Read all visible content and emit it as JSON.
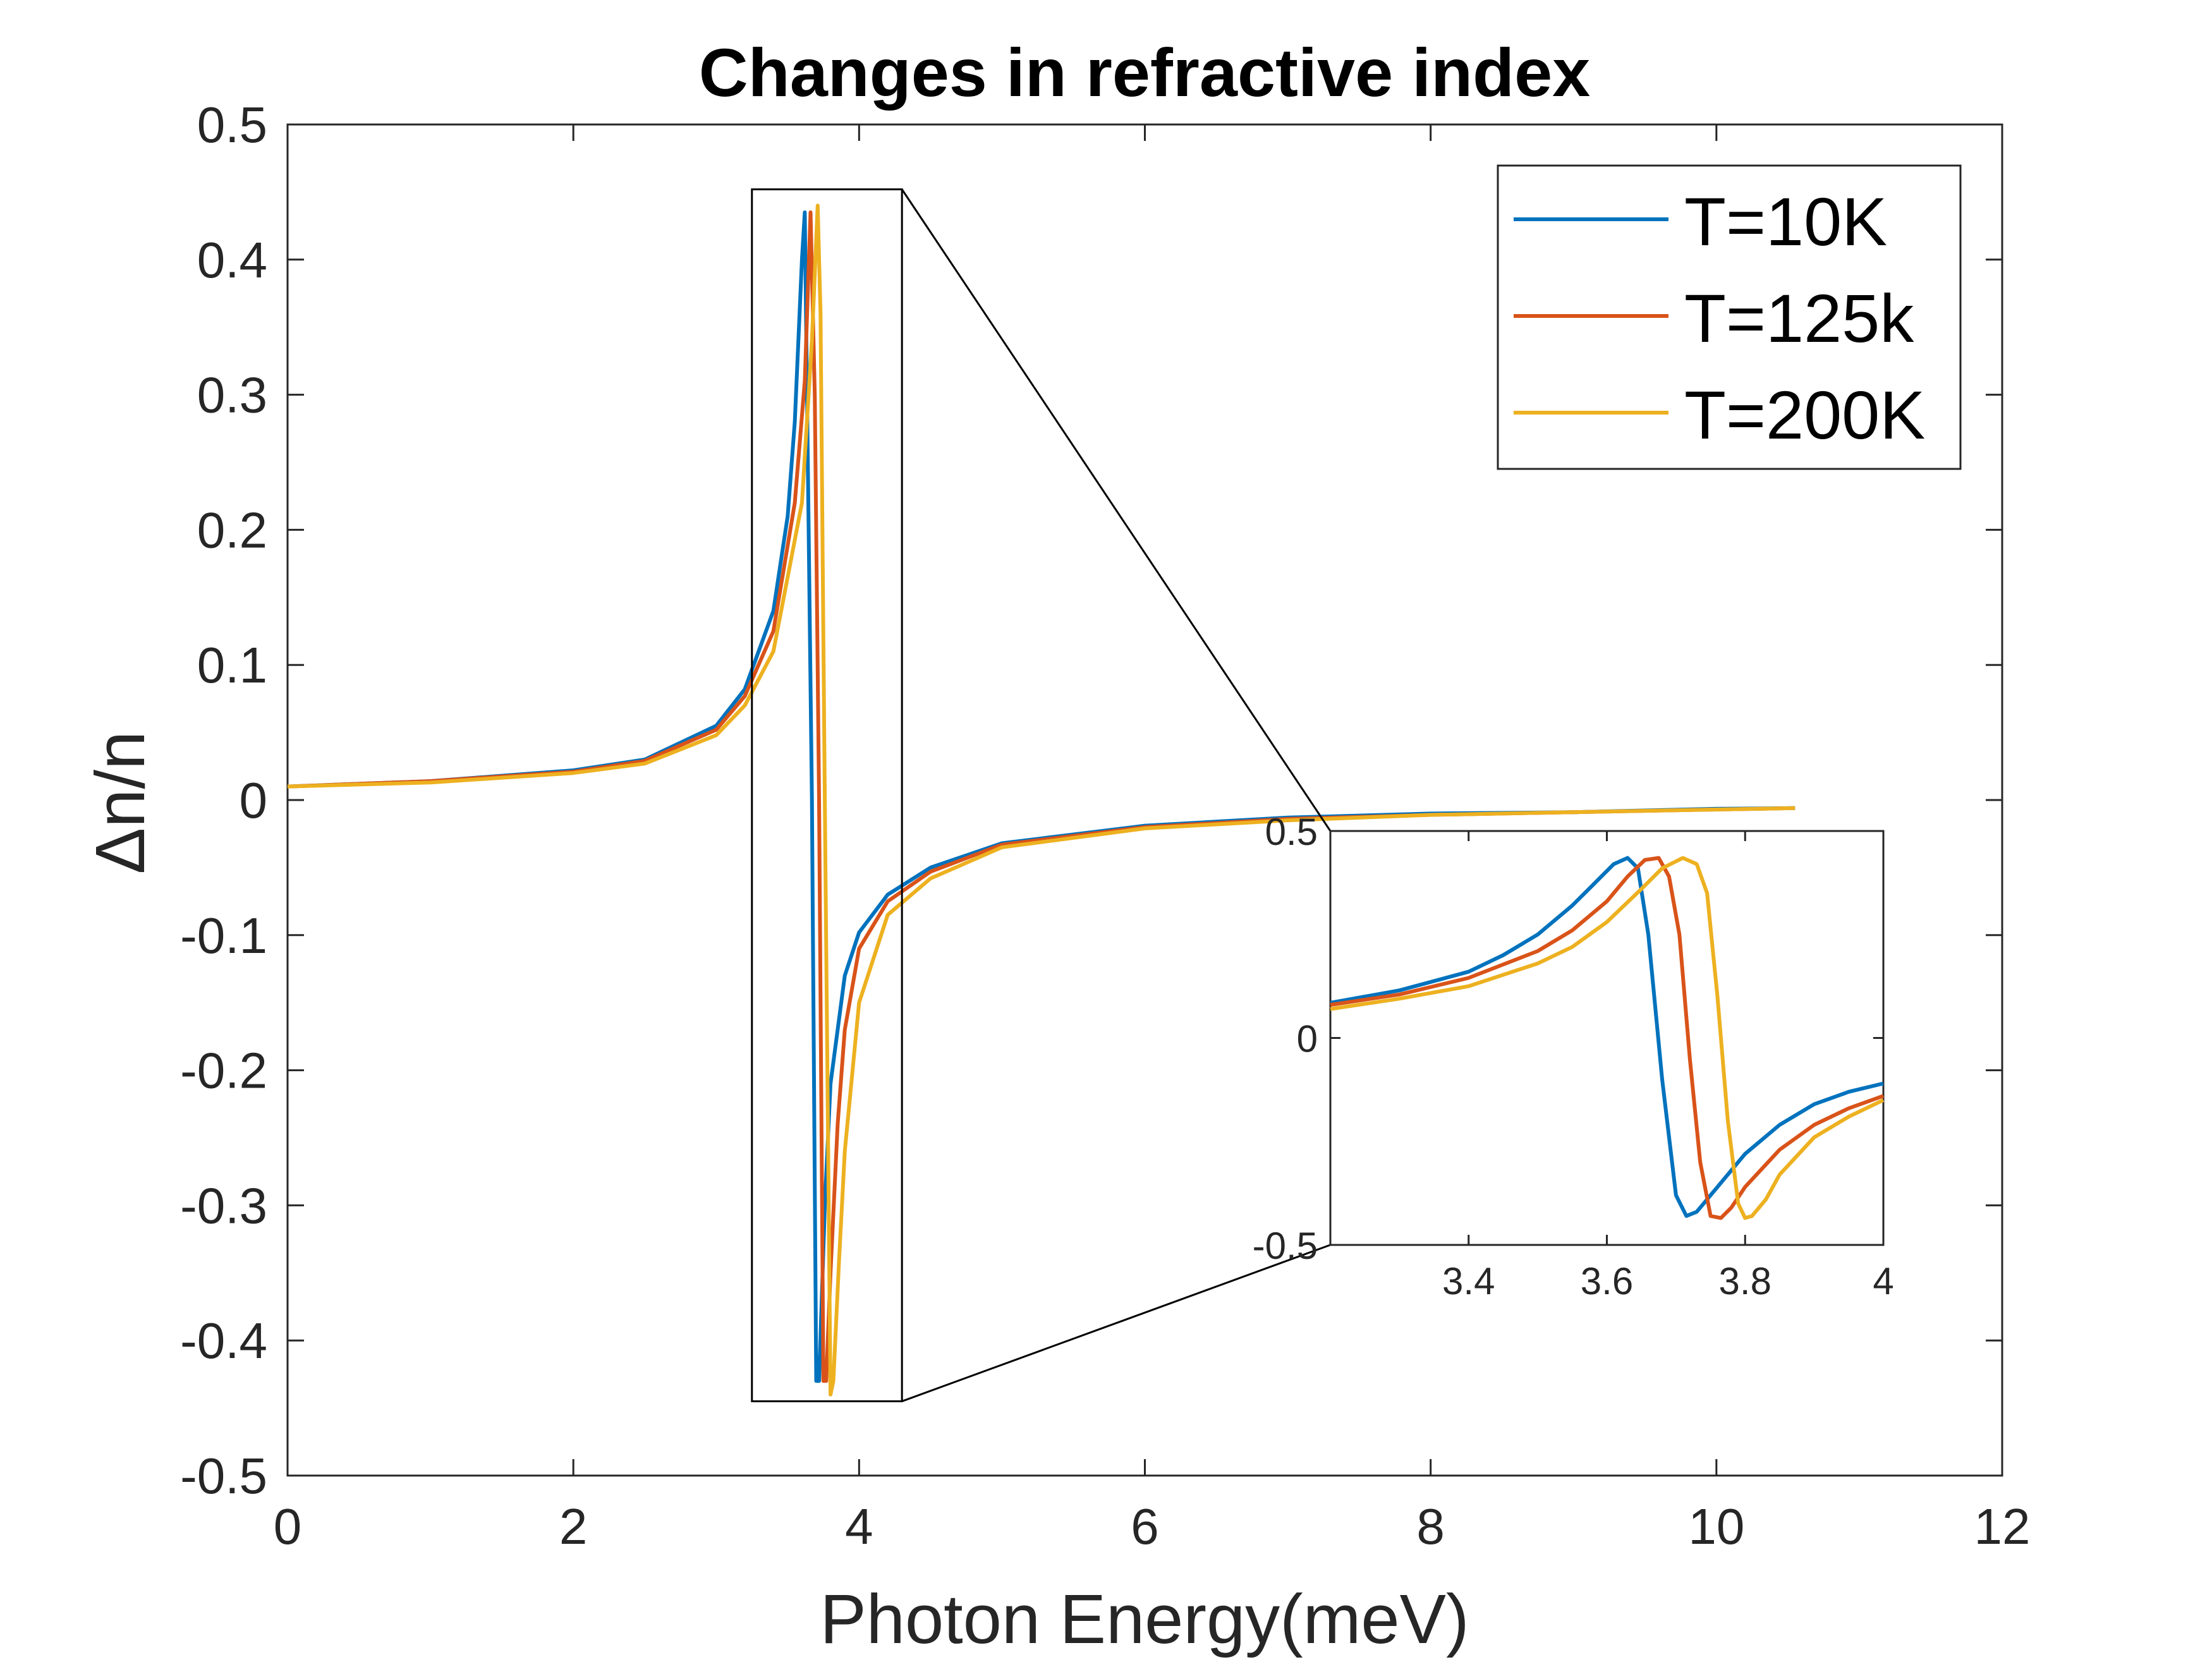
{
  "chart_data": [
    {
      "id": "main",
      "type": "line",
      "title": "Changes in refractive index",
      "xlabel": "Photon Energy(meV)",
      "ylabel": "Δn/n",
      "xlim": [
        0,
        12
      ],
      "ylim": [
        -0.5,
        0.5
      ],
      "xticks": [
        0,
        2,
        4,
        6,
        8,
        10,
        12
      ],
      "xtick_labels": [
        "0",
        "2",
        "4",
        "6",
        "8",
        "10",
        "12"
      ],
      "yticks": [
        -0.5,
        -0.4,
        -0.3,
        -0.2,
        -0.1,
        0,
        0.1,
        0.2,
        0.3,
        0.4,
        0.5
      ],
      "ytick_labels": [
        "-0.5",
        "-0.4",
        "-0.3",
        "-0.2",
        "-0.1",
        "0",
        "0.1",
        "0.2",
        "0.3",
        "0.4",
        "0.5"
      ],
      "legend_position": "top-right",
      "zoom_box": {
        "x": [
          3.25,
          4.3
        ],
        "y": [
          -0.445,
          0.452
        ]
      },
      "series": [
        {
          "name": "T=10K",
          "color": "#0072BD",
          "x": [
            0,
            1,
            2,
            2.5,
            3,
            3.2,
            3.4,
            3.5,
            3.55,
            3.6,
            3.62,
            3.67,
            3.7,
            3.72,
            3.76,
            3.8,
            3.9,
            4,
            4.2,
            4.5,
            5,
            6,
            7,
            8,
            9,
            10,
            10.55
          ],
          "y": [
            0.01,
            0.014,
            0.022,
            0.03,
            0.055,
            0.082,
            0.14,
            0.21,
            0.28,
            0.4,
            0.435,
            0.0,
            -0.43,
            -0.43,
            -0.3,
            -0.21,
            -0.13,
            -0.098,
            -0.07,
            -0.05,
            -0.032,
            -0.019,
            -0.013,
            -0.01,
            -0.009,
            -0.0065,
            -0.006
          ]
        },
        {
          "name": "T=125k",
          "color": "#D95319",
          "x": [
            0,
            1,
            2,
            2.5,
            3,
            3.2,
            3.4,
            3.55,
            3.62,
            3.66,
            3.69,
            3.72,
            3.75,
            3.77,
            3.8,
            3.85,
            3.9,
            4,
            4.2,
            4.5,
            5,
            6,
            7,
            8,
            9,
            10,
            10.55
          ],
          "y": [
            0.01,
            0.014,
            0.021,
            0.029,
            0.052,
            0.077,
            0.125,
            0.22,
            0.31,
            0.435,
            0.3,
            0.0,
            -0.43,
            -0.43,
            -0.35,
            -0.24,
            -0.17,
            -0.11,
            -0.075,
            -0.053,
            -0.033,
            -0.02,
            -0.014,
            -0.011,
            -0.009,
            -0.007,
            -0.006
          ]
        },
        {
          "name": "T=200K",
          "color": "#EDB120",
          "x": [
            0,
            1,
            2,
            2.5,
            3,
            3.2,
            3.4,
            3.6,
            3.67,
            3.71,
            3.73,
            3.76,
            3.8,
            3.82,
            3.86,
            3.9,
            4,
            4.2,
            4.5,
            5,
            6,
            7,
            8,
            9,
            10,
            10.55
          ],
          "y": [
            0.01,
            0.013,
            0.02,
            0.027,
            0.048,
            0.07,
            0.11,
            0.22,
            0.34,
            0.44,
            0.36,
            0.0,
            -0.44,
            -0.43,
            -0.34,
            -0.26,
            -0.15,
            -0.085,
            -0.058,
            -0.035,
            -0.021,
            -0.015,
            -0.011,
            -0.009,
            -0.007,
            -0.006
          ]
        }
      ]
    },
    {
      "id": "inset",
      "type": "line",
      "title": "",
      "xlabel": "",
      "ylabel": "",
      "xlim": [
        3.2,
        4.0
      ],
      "ylim": [
        -0.5,
        0.5
      ],
      "xticks": [
        3.4,
        3.6,
        3.8,
        4
      ],
      "xtick_labels": [
        "3.4",
        "3.6",
        "3.8",
        "4"
      ],
      "yticks": [
        -0.5,
        0,
        0.5
      ],
      "ytick_labels": [
        "-0.5",
        "0",
        "0.5"
      ],
      "series": [
        {
          "name": "T=10K",
          "color": "#0072BD",
          "x": [
            3.2,
            3.3,
            3.4,
            3.45,
            3.5,
            3.55,
            3.58,
            3.61,
            3.63,
            3.645,
            3.66,
            3.68,
            3.7,
            3.715,
            3.73,
            3.76,
            3.8,
            3.85,
            3.9,
            3.95,
            4.0
          ],
          "y": [
            0.085,
            0.115,
            0.16,
            0.2,
            0.25,
            0.32,
            0.37,
            0.42,
            0.435,
            0.41,
            0.25,
            -0.1,
            -0.38,
            -0.43,
            -0.42,
            -0.36,
            -0.28,
            -0.21,
            -0.16,
            -0.13,
            -0.11
          ]
        },
        {
          "name": "T=125k",
          "color": "#D95319",
          "x": [
            3.2,
            3.3,
            3.4,
            3.5,
            3.55,
            3.6,
            3.63,
            3.655,
            3.675,
            3.69,
            3.705,
            3.72,
            3.735,
            3.75,
            3.765,
            3.78,
            3.8,
            3.85,
            3.9,
            3.95,
            4.0
          ],
          "y": [
            0.08,
            0.105,
            0.145,
            0.21,
            0.26,
            0.33,
            0.39,
            0.43,
            0.435,
            0.39,
            0.25,
            -0.05,
            -0.3,
            -0.43,
            -0.435,
            -0.41,
            -0.36,
            -0.27,
            -0.21,
            -0.17,
            -0.14
          ]
        },
        {
          "name": "T=200K",
          "color": "#EDB120",
          "x": [
            3.2,
            3.3,
            3.4,
            3.5,
            3.55,
            3.6,
            3.65,
            3.68,
            3.71,
            3.73,
            3.745,
            3.76,
            3.775,
            3.79,
            3.8,
            3.81,
            3.83,
            3.85,
            3.9,
            3.95,
            4.0
          ],
          "y": [
            0.07,
            0.095,
            0.125,
            0.18,
            0.22,
            0.28,
            0.36,
            0.41,
            0.435,
            0.42,
            0.35,
            0.1,
            -0.2,
            -0.4,
            -0.435,
            -0.43,
            -0.39,
            -0.33,
            -0.24,
            -0.19,
            -0.15
          ]
        }
      ]
    }
  ]
}
